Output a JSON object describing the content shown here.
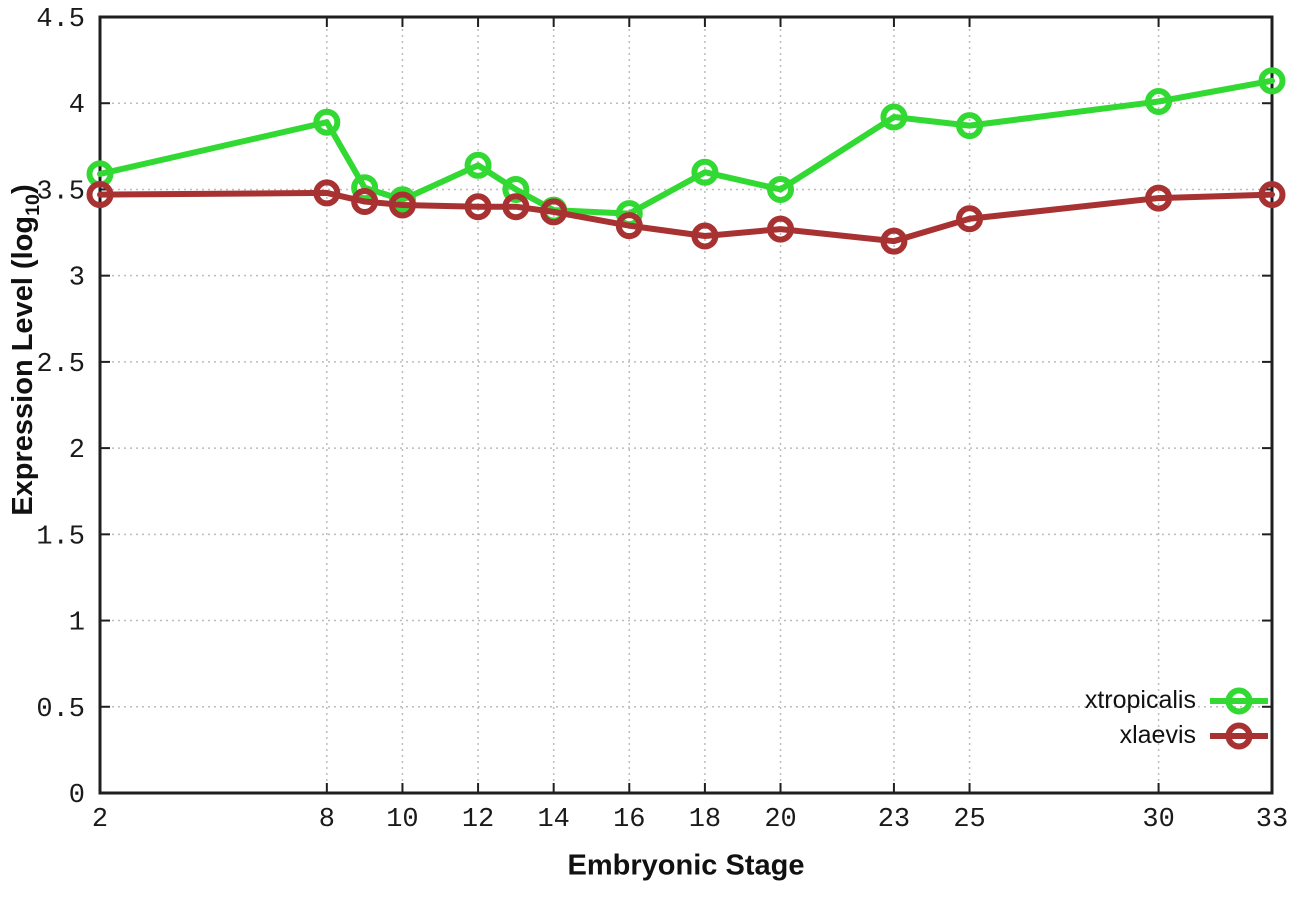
{
  "chart_data": {
    "type": "line",
    "title": "",
    "xlabel": "Embryonic Stage",
    "ylabel": "Expression Level (log10)",
    "ylabel_parts": {
      "prefix": "Expression Level (log",
      "sub": "10",
      "suffix": ")"
    },
    "x": [
      2,
      8,
      9,
      10,
      12,
      13,
      14,
      16,
      18,
      20,
      23,
      25,
      30,
      33
    ],
    "xticks": [
      2,
      8,
      10,
      12,
      14,
      16,
      18,
      20,
      23,
      25,
      30,
      33
    ],
    "yticks": [
      0,
      0.5,
      1,
      1.5,
      2,
      2.5,
      3,
      3.5,
      4,
      4.5
    ],
    "xlim": [
      2,
      33
    ],
    "ylim": [
      0,
      4.5
    ],
    "grid": true,
    "legend_position": "bottom-right",
    "series": [
      {
        "name": "xtropicalis",
        "color": "#32d932",
        "values": [
          3.59,
          3.89,
          3.51,
          3.44,
          3.64,
          3.5,
          3.38,
          3.36,
          3.6,
          3.5,
          3.92,
          3.87,
          4.01,
          4.13
        ]
      },
      {
        "name": "xlaevis",
        "color": "#a83232",
        "values": [
          3.47,
          3.48,
          3.43,
          3.41,
          3.4,
          3.4,
          3.37,
          3.29,
          3.23,
          3.27,
          3.2,
          3.33,
          3.45,
          3.47
        ]
      }
    ]
  },
  "colors": {
    "background": "#ffffff",
    "border": "#1f1f1f",
    "grid": "#bcbcbc",
    "tick": "#1f1f1f",
    "text": "#111111"
  }
}
